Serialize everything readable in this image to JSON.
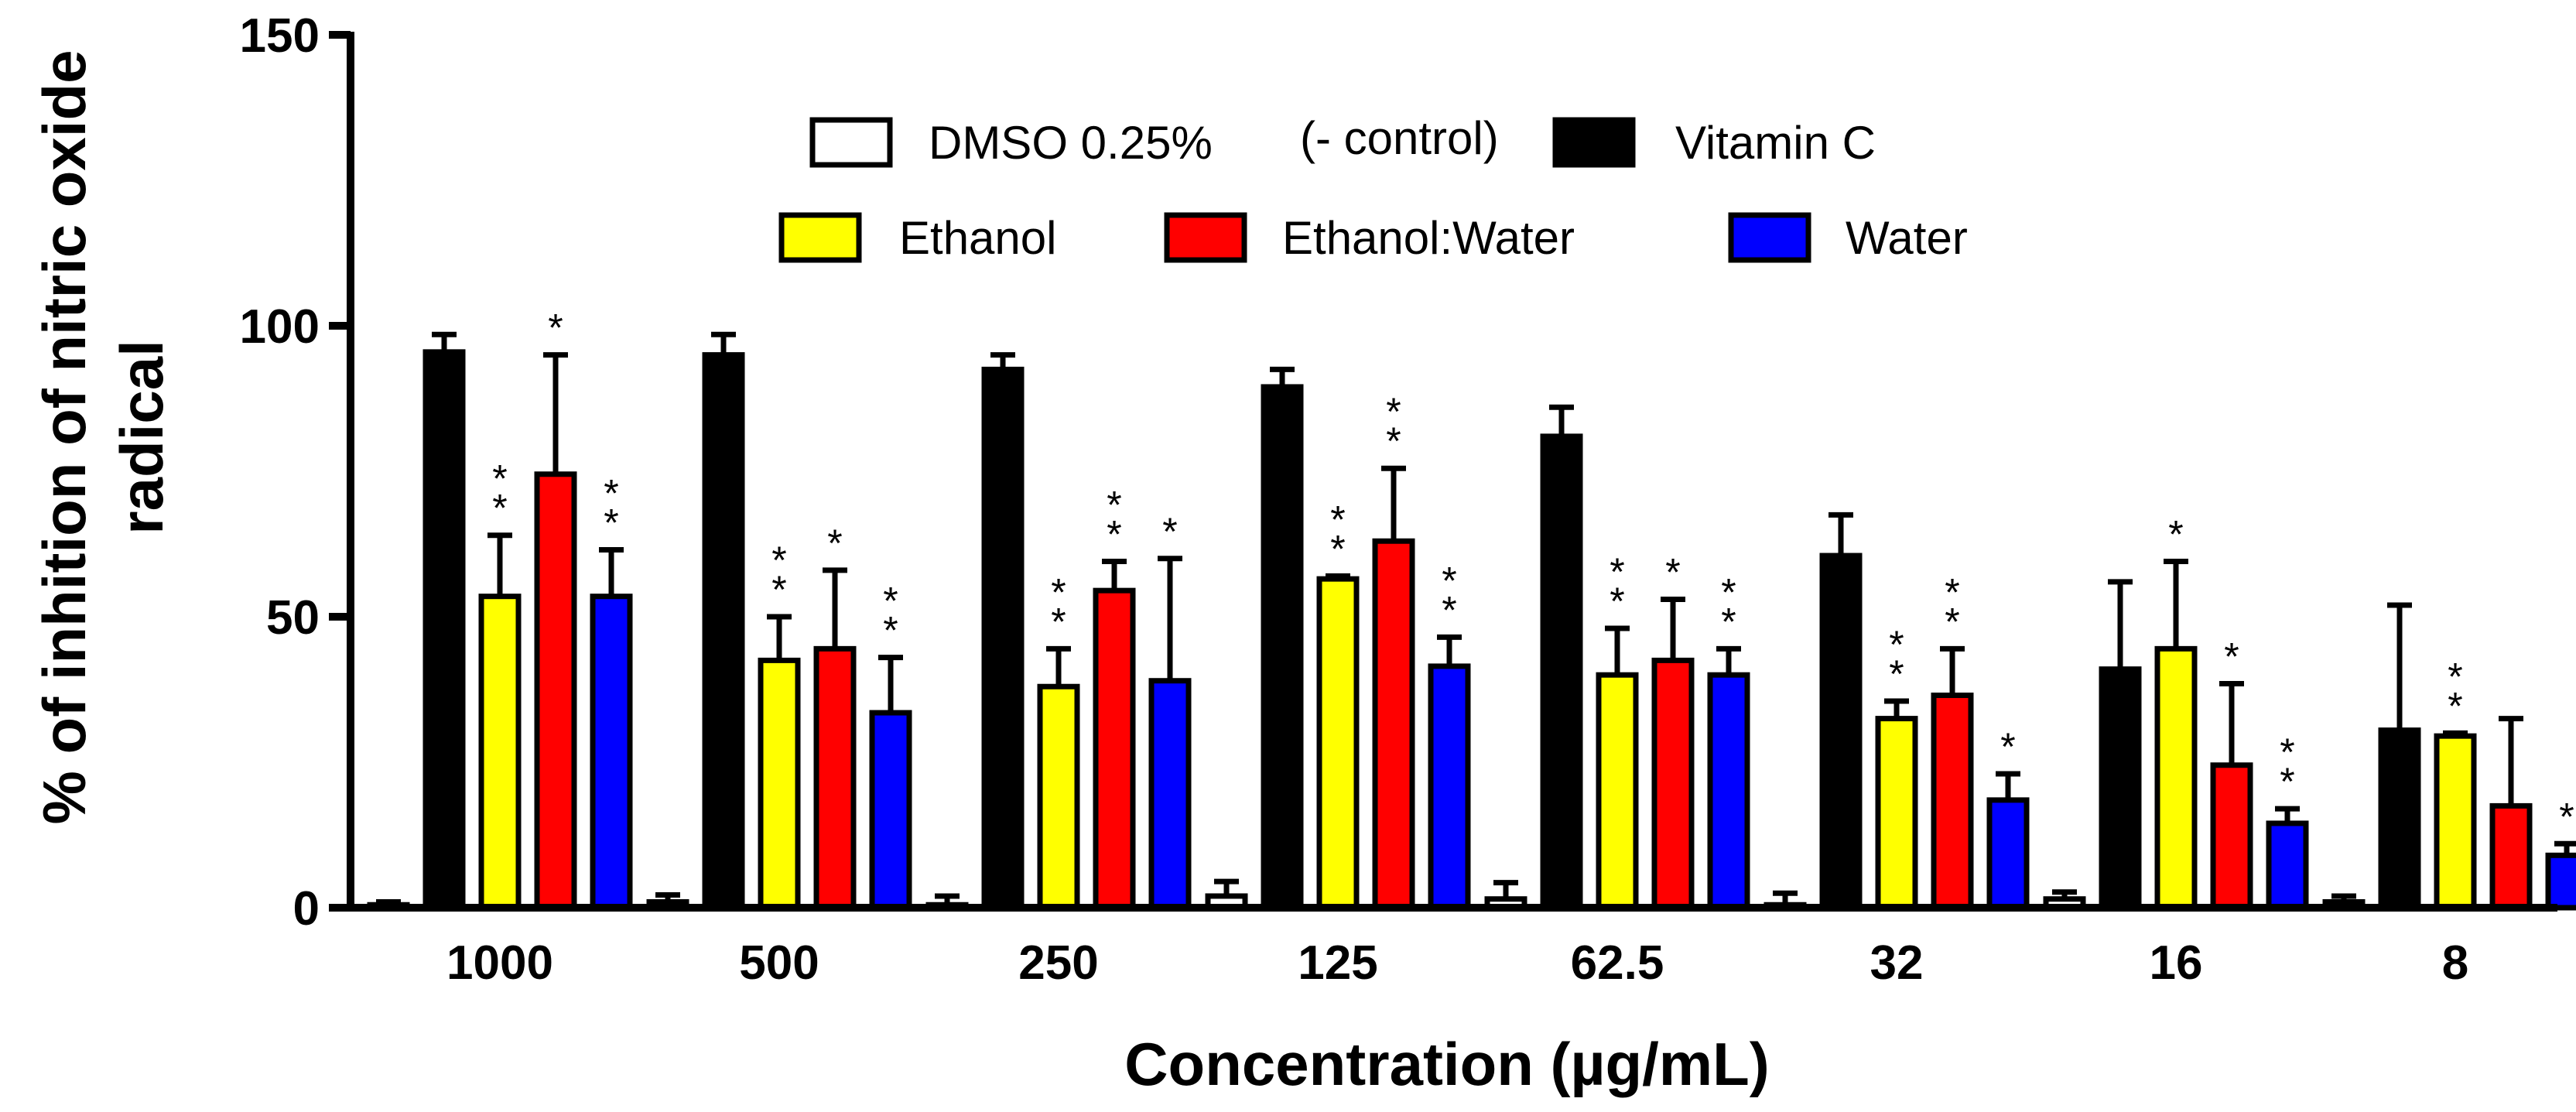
{
  "chart_data": {
    "type": "bar",
    "title": "",
    "xlabel": "Concentration (µg/mL)",
    "ylabel_lines": [
      "% of inhition of nitric oxide",
      "radical"
    ],
    "ylim": [
      0,
      150
    ],
    "yticks": [
      0,
      50,
      100,
      150
    ],
    "grid": false,
    "legend_position": "top-center",
    "legend_rows": [
      [
        {
          "name": "DMSO 0.25%",
          "note": "(- control)",
          "color": "#ffffff"
        },
        {
          "name": "Vitamin C",
          "color": "#000000"
        }
      ],
      [
        {
          "name": "Ethanol",
          "color": "#ffff00"
        },
        {
          "name": "Ethanol:Water",
          "color": "#ff0000"
        },
        {
          "name": "Water",
          "color": "#0000ff"
        }
      ]
    ],
    "categories": [
      "1000",
      "500",
      "250",
      "125",
      "62.5",
      "32",
      "16",
      "8"
    ],
    "series": [
      {
        "name": "DMSO 0.25%",
        "color": "#ffffff",
        "values": [
          0.5,
          1.0,
          0.5,
          2.0,
          1.5,
          0.5,
          1.5,
          1.0
        ],
        "errors": [
          0.5,
          1.2,
          1.5,
          2.5,
          2.8,
          2.0,
          1.2,
          1.0
        ],
        "significance": [
          "",
          "",
          "",
          "",
          "",
          "",
          "",
          ""
        ]
      },
      {
        "name": "Vitamin C",
        "color": "#000000",
        "values": [
          95.5,
          95.0,
          92.5,
          89.5,
          81.0,
          60.5,
          41.0,
          30.5
        ],
        "errors": [
          3.0,
          3.5,
          2.5,
          3.0,
          5.0,
          7.0,
          15.0,
          21.5
        ],
        "significance": [
          "",
          "",
          "",
          "",
          "",
          "",
          "",
          ""
        ]
      },
      {
        "name": "Ethanol",
        "color": "#ffff00",
        "values": [
          53.5,
          42.5,
          38.0,
          56.5,
          40.0,
          32.5,
          44.5,
          29.5
        ],
        "errors": [
          10.5,
          7.5,
          6.5,
          0.5,
          8.0,
          3.0,
          15.0,
          0.5
        ],
        "significance": [
          "**",
          "**",
          "**",
          "**",
          "**",
          "**",
          "*",
          "**"
        ]
      },
      {
        "name": "Ethanol:Water",
        "color": "#ff0000",
        "values": [
          74.5,
          44.5,
          54.5,
          63.0,
          42.5,
          36.5,
          24.5,
          17.5
        ],
        "errors": [
          20.5,
          13.5,
          5.0,
          12.5,
          10.5,
          8.0,
          14.0,
          15.0
        ],
        "significance": [
          "*",
          "*",
          "**",
          "**",
          "*",
          "**",
          "*",
          ""
        ]
      },
      {
        "name": "Water",
        "color": "#0000ff",
        "values": [
          53.5,
          33.5,
          39.0,
          41.5,
          40.0,
          18.5,
          14.5,
          9.0
        ],
        "errors": [
          8.0,
          9.5,
          21.0,
          5.0,
          4.5,
          4.5,
          2.5,
          2.0
        ],
        "significance": [
          "**",
          "**",
          "*",
          "**",
          "**",
          "*",
          "**",
          "*"
        ]
      }
    ]
  }
}
